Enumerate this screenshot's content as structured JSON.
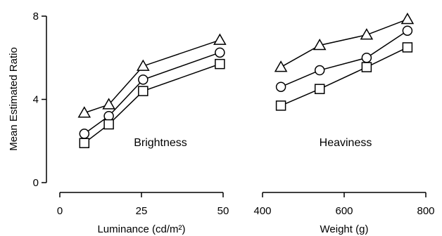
{
  "chart_data": {
    "type": "line",
    "ylabel": "Mean Estimated Ratio",
    "ylim": [
      0,
      8
    ],
    "yticks": [
      0,
      4,
      8
    ],
    "grid": false,
    "legend": "none",
    "panels": [
      {
        "label": "Brightness",
        "xlabel": "Luminance (cd/m²)",
        "xlim": [
          0,
          50
        ],
        "xticks": [
          0,
          25,
          50
        ],
        "x": [
          7.5,
          15,
          25.5,
          49
        ],
        "series": [
          {
            "marker": "triangle",
            "values": [
              3.35,
              3.75,
              5.6,
              6.85
            ]
          },
          {
            "marker": "circle",
            "values": [
              2.35,
              3.2,
              4.95,
              6.25
            ]
          },
          {
            "marker": "square",
            "values": [
              1.9,
              2.8,
              4.4,
              5.7
            ]
          }
        ]
      },
      {
        "label": "Heaviness",
        "xlabel": "Weight (g)",
        "xlim": [
          400,
          800
        ],
        "xticks": [
          400,
          600,
          800
        ],
        "x": [
          445,
          540,
          655,
          755
        ],
        "series": [
          {
            "marker": "triangle",
            "values": [
              5.55,
              6.6,
              7.1,
              7.85
            ]
          },
          {
            "marker": "circle",
            "values": [
              4.6,
              5.4,
              6.0,
              7.3
            ]
          },
          {
            "marker": "square",
            "values": [
              3.7,
              4.5,
              5.55,
              6.5
            ]
          }
        ]
      }
    ]
  }
}
